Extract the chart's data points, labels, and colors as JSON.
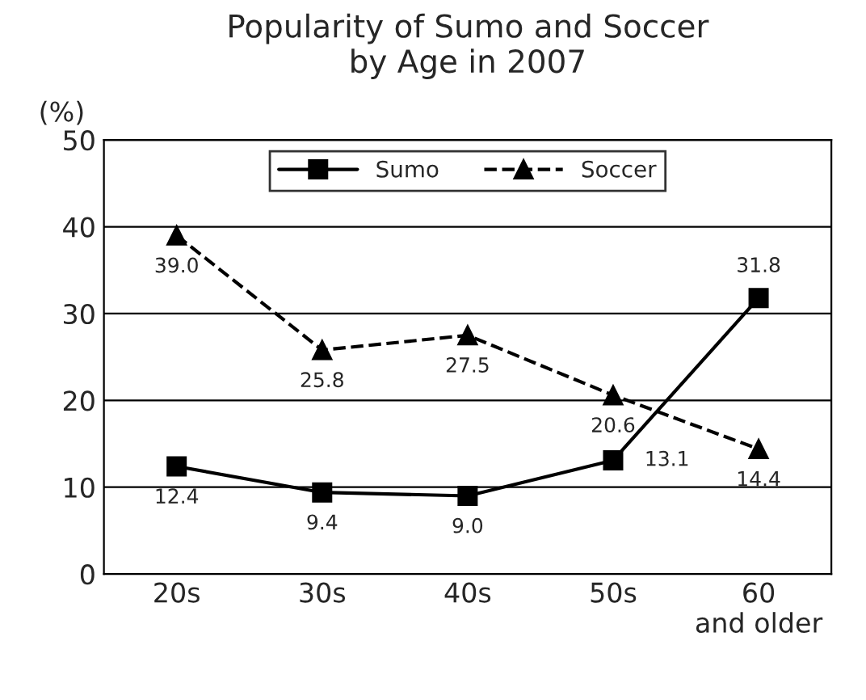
{
  "chart_data": {
    "type": "line",
    "title": "Popularity of Sumo and Soccer\nby Age in 2007",
    "ylabel": "(%)",
    "categories": [
      "20s",
      "30s",
      "40s",
      "50s",
      "60\nand older"
    ],
    "series": [
      {
        "name": "Sumo",
        "color": "#000000",
        "values": [
          12.4,
          9.4,
          9.0,
          13.1,
          31.8
        ],
        "value_labels": [
          "12.4",
          "9.4",
          "9.0",
          "13.1",
          "31.8"
        ],
        "marker": "square",
        "line_style": "solid"
      },
      {
        "name": "Soccer",
        "color": "#000000",
        "values": [
          39.0,
          25.8,
          27.5,
          20.6,
          14.4
        ],
        "value_labels": [
          "39.0",
          "25.8",
          "27.5",
          "20.6",
          "14.4"
        ],
        "marker": "triangle",
        "line_style": "dashed"
      }
    ],
    "ylim": [
      0,
      50
    ],
    "yticks": [
      0,
      10,
      20,
      30,
      40,
      50
    ],
    "grid": "y",
    "legend": "top"
  }
}
